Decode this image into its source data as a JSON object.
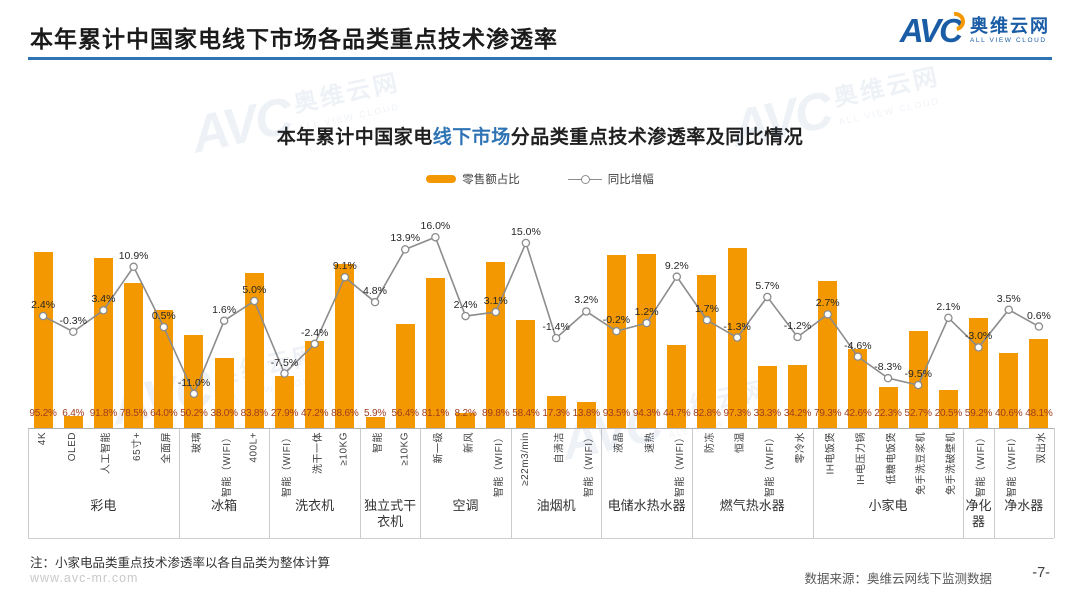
{
  "page": {
    "header_title": "本年累计中国家电线下市场各品类重点技术渗透率",
    "logo": {
      "avc": "AVC",
      "cn": "奥维云网",
      "en": "ALL VIEW CLOUD"
    },
    "note": "注：小家电品类重点技术渗透率以各自品类为整体计算",
    "url": "www.avc-mr.com",
    "source": "数据来源：奥维云网线下监测数据",
    "page_number": "-7-"
  },
  "chart": {
    "title": {
      "pre": "本年累计中国家电",
      "highlight": "线下市场",
      "post": "分品类重点技术渗透率及同比情况"
    },
    "legend": {
      "bar_label": "零售额占比",
      "line_label": "同比增幅"
    }
  },
  "chart_data": {
    "type": "bar+line",
    "series_names": [
      "零售额占比",
      "同比增幅"
    ],
    "value_unit": "%",
    "bar_axis": {
      "min": 0,
      "max": 100,
      "visible": false,
      "grid": false
    },
    "line_axis": {
      "min": -12,
      "max": 17,
      "visible": false,
      "grid": false
    },
    "legend_position": "top-center",
    "colors": {
      "bar": "#F39800",
      "line": "#8C8C8C",
      "bar_label": "#9E3D1E",
      "line_label": "#262626",
      "title_highlight": "#2E74B5"
    },
    "groups": [
      {
        "label": "彩电",
        "items": [
          {
            "name": "4K",
            "share": 95.2,
            "yoy": 2.4
          },
          {
            "name": "OLED",
            "share": 6.4,
            "yoy": -0.3
          },
          {
            "name": "人工智能",
            "share": 91.8,
            "yoy": 3.4
          },
          {
            "name": "65寸+",
            "share": 78.5,
            "yoy": 10.9
          },
          {
            "name": "全面屏",
            "share": 64.0,
            "yoy": 0.5
          }
        ]
      },
      {
        "label": "冰箱",
        "items": [
          {
            "name": "玻璃",
            "share": 50.2,
            "yoy": -11.0
          },
          {
            "name": "智能（WIFI）",
            "share": 38.0,
            "yoy": 1.6
          },
          {
            "name": "400L+",
            "share": 83.8,
            "yoy": 5.0
          }
        ]
      },
      {
        "label": "洗衣机",
        "items": [
          {
            "name": "智能（WIFI）",
            "share": 27.9,
            "yoy": -7.5
          },
          {
            "name": "洗干一体",
            "share": 47.2,
            "yoy": -2.4
          },
          {
            "name": "≥10KG",
            "share": 88.6,
            "yoy": 9.1
          }
        ]
      },
      {
        "label": "独立式干衣机",
        "items": [
          {
            "name": "智能",
            "share": 5.9,
            "yoy": 4.8
          },
          {
            "name": "≥10KG",
            "share": 56.4,
            "yoy": 13.9
          }
        ]
      },
      {
        "label": "空调",
        "items": [
          {
            "name": "新一级",
            "share": 81.1,
            "yoy": 16.0
          },
          {
            "name": "新风",
            "share": 8.2,
            "yoy": 2.4
          },
          {
            "name": "智能（WIFI）",
            "share": 89.8,
            "yoy": 3.1
          }
        ]
      },
      {
        "label": "油烟机",
        "items": [
          {
            "name": "≥22m3/min",
            "share": 58.4,
            "yoy": 15.0
          },
          {
            "name": "自清洁",
            "share": 17.3,
            "yoy": -1.4
          },
          {
            "name": "智能（WIFI）",
            "share": 13.8,
            "yoy": 3.2
          }
        ]
      },
      {
        "label": "电储水热水器",
        "items": [
          {
            "name": "液晶",
            "share": 93.5,
            "yoy": -0.2
          },
          {
            "name": "速热",
            "share": 94.3,
            "yoy": 1.2
          },
          {
            "name": "智能（WIFI）",
            "share": 44.7,
            "yoy": 9.2
          }
        ]
      },
      {
        "label": "燃气热水器",
        "items": [
          {
            "name": "防冻",
            "share": 82.8,
            "yoy": 1.7
          },
          {
            "name": "恒温",
            "share": 97.3,
            "yoy": -1.3
          },
          {
            "name": "智能（WIFI）",
            "share": 33.3,
            "yoy": 5.7
          },
          {
            "name": "零冷水",
            "share": 34.2,
            "yoy": -1.2
          }
        ]
      },
      {
        "label": "小家电",
        "items": [
          {
            "name": "IH电饭煲",
            "share": 79.3,
            "yoy": 2.7
          },
          {
            "name": "IH电压力锅",
            "share": 42.6,
            "yoy": -4.6
          },
          {
            "name": "低糖电饭煲",
            "share": 22.3,
            "yoy": -8.3
          },
          {
            "name": "免手洗豆浆机",
            "share": 52.7,
            "yoy": -9.5
          },
          {
            "name": "免手洗破壁机",
            "share": 20.5,
            "yoy": 2.1
          }
        ]
      },
      {
        "label": "净化器",
        "items": [
          {
            "name": "智能（WIFI）",
            "share": 59.2,
            "yoy": -3.0
          }
        ]
      },
      {
        "label": "净水器",
        "items": [
          {
            "name": "智能（WIFI）",
            "share": 40.6,
            "yoy": 3.5
          },
          {
            "name": "双出水",
            "share": 48.1,
            "yoy": 0.6
          }
        ]
      }
    ]
  }
}
